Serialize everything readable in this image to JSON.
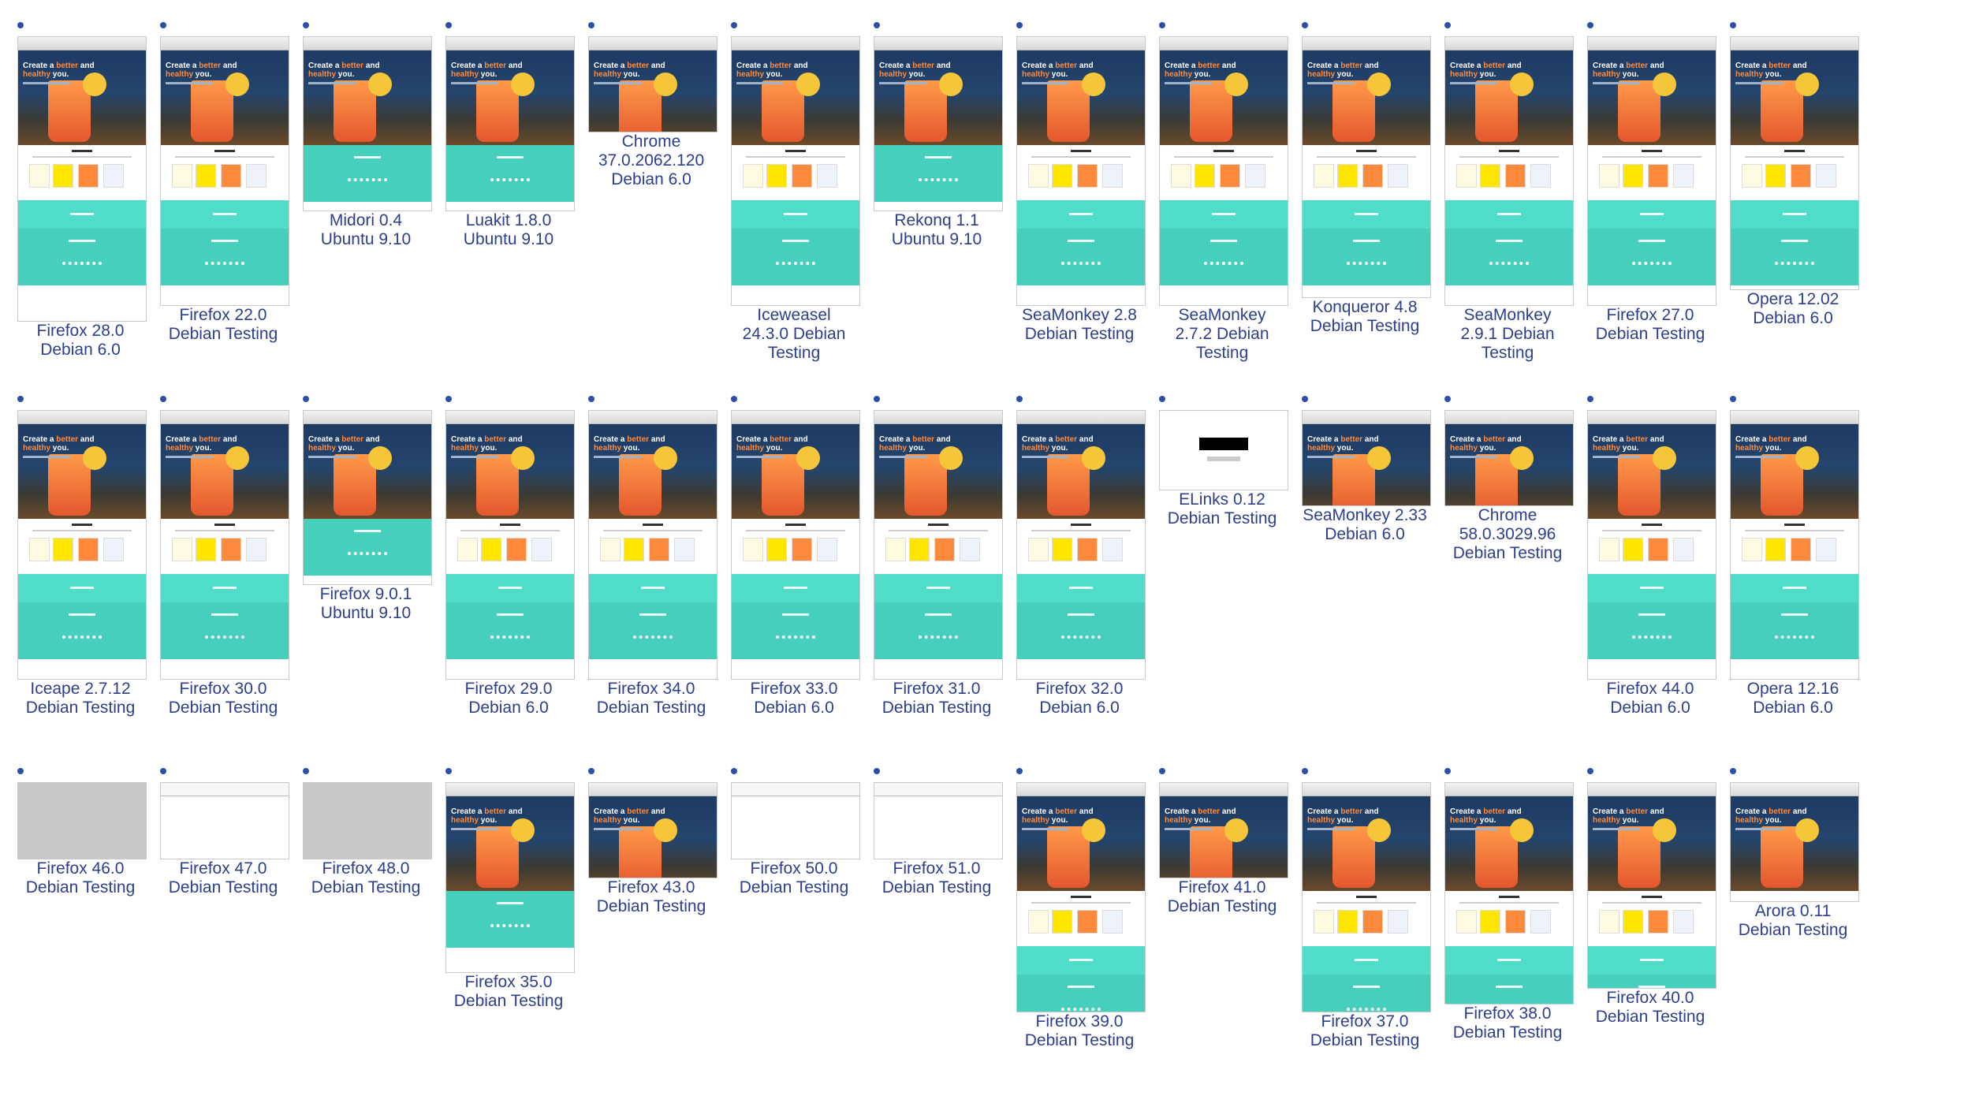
{
  "hero_text": {
    "line1_a": "Create a ",
    "line1_b": "better",
    "line1_c": " and",
    "line2_a": "healthy",
    "line2_b": " you."
  },
  "colors": {
    "label": "#2d3f8c",
    "dot": "#2b4fa8",
    "teal": "#4fdcc8"
  },
  "items": [
    {
      "label": "Firefox 28.0\nDebian 6.0"
    },
    {
      "label": "Firefox 22.0\nDebian Testing"
    },
    {
      "label": "Midori 0.4\nUbuntu 9.10"
    },
    {
      "label": "Luakit 1.8.0\nUbuntu 9.10"
    },
    {
      "label": "Chrome\n37.0.2062.120\nDebian 6.0"
    },
    {
      "label": "Iceweasel\n24.3.0 Debian\nTesting"
    },
    {
      "label": "Rekonq 1.1\nUbuntu 9.10"
    },
    {
      "label": "SeaMonkey 2.8\nDebian Testing"
    },
    {
      "label": "SeaMonkey\n2.7.2 Debian\nTesting"
    },
    {
      "label": "Konqueror 4.8\nDebian Testing"
    },
    {
      "label": "SeaMonkey\n2.9.1 Debian\nTesting"
    },
    {
      "label": "Firefox 27.0\nDebian Testing"
    },
    {
      "label": "Opera 12.02\nDebian 6.0"
    },
    {
      "label": "Iceape 2.7.12\nDebian Testing"
    },
    {
      "label": "Firefox 30.0\nDebian Testing"
    },
    {
      "label": "Firefox 9.0.1\nUbuntu 9.10"
    },
    {
      "label": "Firefox 29.0\nDebian 6.0"
    },
    {
      "label": "Firefox 34.0\nDebian Testing"
    },
    {
      "label": "Firefox 33.0\nDebian 6.0"
    },
    {
      "label": "Firefox 31.0\nDebian Testing"
    },
    {
      "label": "Firefox 32.0\nDebian 6.0"
    },
    {
      "label": "ELinks 0.12\nDebian Testing"
    },
    {
      "label": "SeaMonkey 2.33\nDebian 6.0"
    },
    {
      "label": "Chrome\n58.0.3029.96\nDebian Testing"
    },
    {
      "label": "Firefox 44.0\nDebian 6.0"
    },
    {
      "label": "Opera 12.16\nDebian 6.0"
    },
    {
      "label": "Firefox 46.0\nDebian Testing"
    },
    {
      "label": "Firefox 47.0\nDebian Testing"
    },
    {
      "label": "Firefox 48.0\nDebian Testing"
    },
    {
      "label": "Firefox 35.0\nDebian Testing"
    },
    {
      "label": "Firefox 43.0\nDebian Testing"
    },
    {
      "label": "Firefox 50.0\nDebian Testing"
    },
    {
      "label": "Firefox 51.0\nDebian Testing"
    },
    {
      "label": "Firefox 39.0\nDebian Testing"
    },
    {
      "label": "Firefox 41.0\nDebian Testing"
    },
    {
      "label": "Firefox 37.0\nDebian Testing"
    },
    {
      "label": "Firefox 38.0\nDebian Testing"
    },
    {
      "label": "Firefox 40.0\nDebian Testing"
    },
    {
      "label": "Arora 0.11\nDebian Testing"
    }
  ]
}
